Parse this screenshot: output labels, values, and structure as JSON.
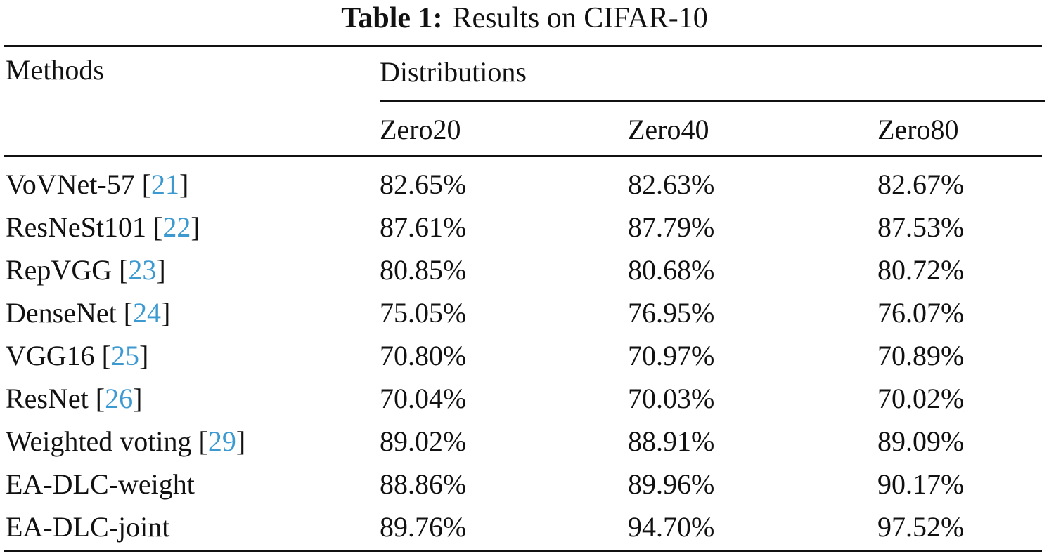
{
  "caption": {
    "label": "Table 1:",
    "text": "Results on CIFAR-10"
  },
  "table": {
    "header": {
      "methods": "Methods",
      "group": "Distributions",
      "columns": [
        "Zero20",
        "Zero40",
        "Zero80"
      ]
    },
    "rows": [
      {
        "method": "VoVNet-57",
        "ref": "21",
        "values": [
          "82.65%",
          "82.63%",
          "82.67%"
        ]
      },
      {
        "method": "ResNeSt101",
        "ref": "22",
        "values": [
          "87.61%",
          "87.79%",
          "87.53%"
        ]
      },
      {
        "method": "RepVGG",
        "ref": "23",
        "values": [
          "80.85%",
          "80.68%",
          "80.72%"
        ]
      },
      {
        "method": "DenseNet",
        "ref": "24",
        "values": [
          "75.05%",
          "76.95%",
          "76.07%"
        ]
      },
      {
        "method": "VGG16",
        "ref": "25",
        "values": [
          "70.80%",
          "70.97%",
          "70.89%"
        ]
      },
      {
        "method": "ResNet",
        "ref": "26",
        "values": [
          "70.04%",
          "70.03%",
          "70.02%"
        ]
      },
      {
        "method": "Weighted voting",
        "ref": "29",
        "values": [
          "89.02%",
          "88.91%",
          "89.09%"
        ]
      },
      {
        "method": "EA-DLC-weight",
        "ref": "",
        "values": [
          "88.86%",
          "89.96%",
          "90.17%"
        ]
      },
      {
        "method": "EA-DLC-joint",
        "ref": "",
        "values": [
          "89.76%",
          "94.70%",
          "97.52%"
        ]
      }
    ]
  },
  "colors": {
    "text": "#111111",
    "citation": "#3c9ad1",
    "background": "#ffffff"
  }
}
